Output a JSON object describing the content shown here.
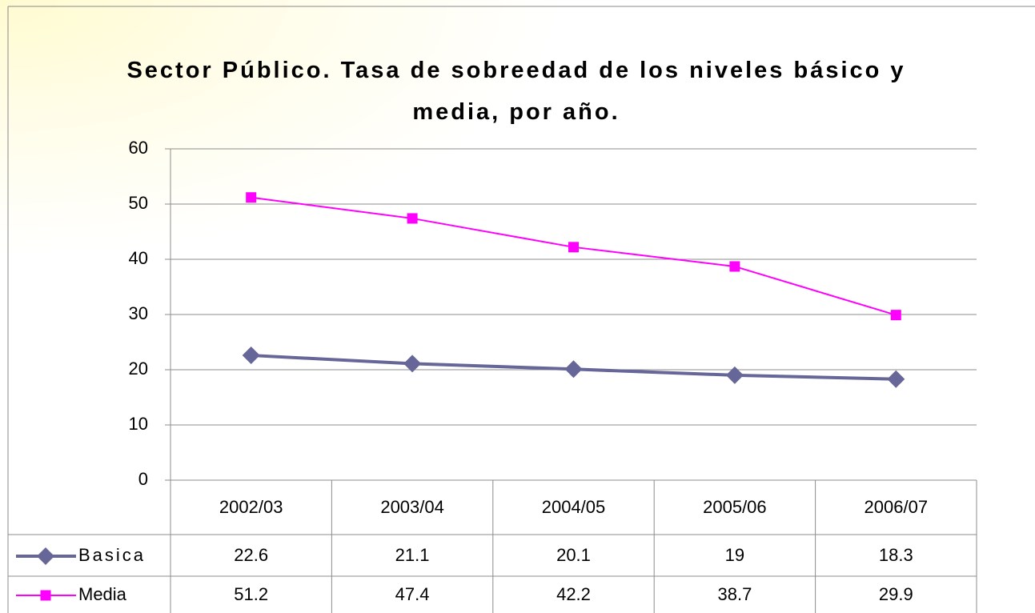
{
  "chart_data": {
    "type": "line",
    "title": "Sector Público. Tasa de sobreedad de los niveles básico y media, por año.",
    "categories": [
      "2002/03",
      "2003/04",
      "2004/05",
      "2005/06",
      "2006/07"
    ],
    "series": [
      {
        "name": "Basica",
        "color": "#666699",
        "marker": "diamond",
        "values": [
          22.6,
          21.1,
          20.1,
          19,
          18.3
        ]
      },
      {
        "name": "Media",
        "color": "#ff00ff",
        "marker": "square",
        "values": [
          51.2,
          47.4,
          42.2,
          38.7,
          29.9
        ]
      }
    ],
    "ylim": [
      0,
      60
    ],
    "yticks": [
      0,
      10,
      20,
      30,
      40,
      50,
      60
    ],
    "grid": true,
    "data_table": true
  }
}
